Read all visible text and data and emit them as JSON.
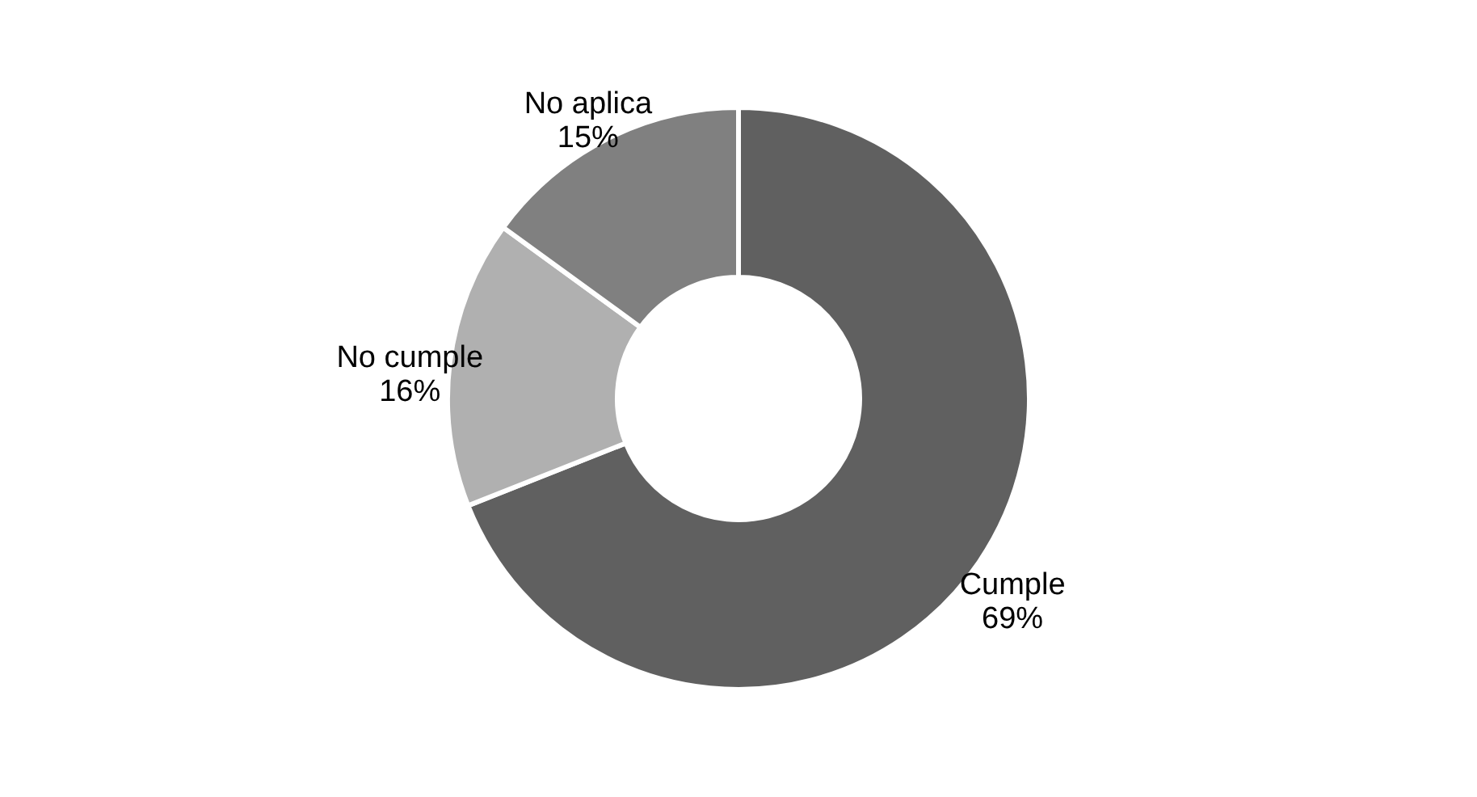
{
  "chart_data": {
    "type": "donut",
    "categories": [
      "Cumple",
      "No cumple",
      "No aplica"
    ],
    "values": [
      69,
      16,
      15
    ],
    "value_labels": [
      "69%",
      "16%",
      "15%"
    ],
    "colors": [
      "#606060",
      "#b0b0b0",
      "#808080"
    ],
    "legend": false
  }
}
